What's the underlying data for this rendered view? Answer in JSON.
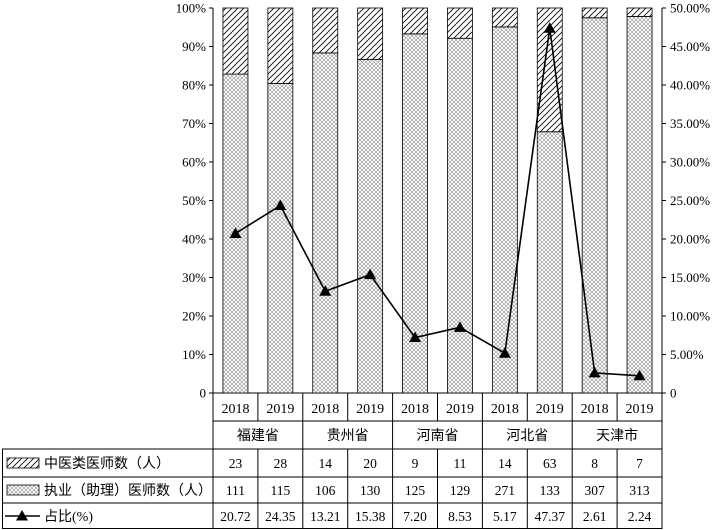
{
  "chart_data": {
    "type": "bar",
    "subtype": "stacked-100-percent-with-line",
    "years": [
      "2018",
      "2019",
      "2018",
      "2019",
      "2018",
      "2019",
      "2018",
      "2019",
      "2018",
      "2019"
    ],
    "groups": [
      "福建省",
      "贵州省",
      "河南省",
      "河北省",
      "天津市"
    ],
    "series": [
      {
        "name": "中医类医师数（人）",
        "kind": "bar",
        "pattern": "hatch-diagonal",
        "values": [
          "23",
          "28",
          "14",
          "20",
          "9",
          "11",
          "14",
          "63",
          "8",
          "7"
        ]
      },
      {
        "name": "执业（助理）医师数（人）",
        "kind": "bar",
        "pattern": "crosshatch",
        "values": [
          "111",
          "115",
          "106",
          "130",
          "125",
          "129",
          "271",
          "133",
          "307",
          "313"
        ]
      },
      {
        "name": "占比(%)",
        "kind": "line",
        "marker": "triangle",
        "axis": "right",
        "values": [
          "20.72",
          "24.35",
          "13.21",
          "15.38",
          "7.20",
          "8.53",
          "5.17",
          "47.37",
          "2.61",
          "2.24"
        ]
      }
    ],
    "left_axis": {
      "ylim": [
        0,
        100
      ],
      "ticks": [
        "0",
        "10%",
        "20%",
        "30%",
        "40%",
        "50%",
        "60%",
        "70%",
        "80%",
        "90%",
        "100%"
      ]
    },
    "right_axis": {
      "ylim": [
        0,
        50
      ],
      "ticks": [
        "0",
        "5.00%",
        "10.00%",
        "15.00%",
        "20.00%",
        "25.00%",
        "30.00%",
        "35.00%",
        "40.00%",
        "45.00%",
        "50.00%"
      ]
    },
    "grid": false,
    "legend": "data-table-below"
  }
}
